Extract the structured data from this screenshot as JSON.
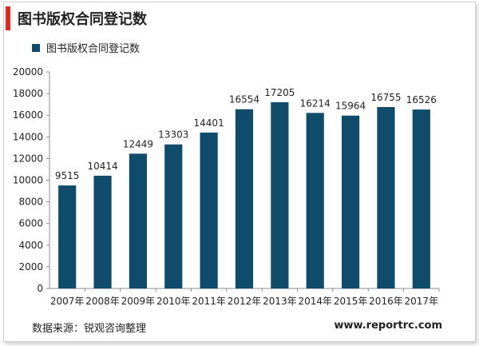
{
  "title": "图书版权合同登记数",
  "source": "数据来源：锐观咨询整理",
  "website": "www.reportrc.com",
  "colors": {
    "accent": "#e8261e",
    "bar": "#0f4c6b"
  },
  "chart_data": {
    "type": "bar",
    "categories": [
      "2007年",
      "2008年",
      "2009年",
      "2010年",
      "2011年",
      "2012年",
      "2013年",
      "2014年",
      "2015年",
      "2016年",
      "2017年"
    ],
    "series": [
      {
        "name": "图书版权合同登记数",
        "values": [
          9515,
          10414,
          12449,
          13303,
          14401,
          16554,
          17205,
          16214,
          15964,
          16755,
          16526
        ]
      }
    ],
    "data_labels": [
      "9515",
      "10414",
      "12449",
      "13303",
      "14401",
      "16554",
      "17205",
      "16214",
      "15964",
      "16755",
      "16526"
    ],
    "yticks": [
      "0",
      "2000",
      "4000",
      "6000",
      "8000",
      "10000",
      "12000",
      "14000",
      "16000",
      "18000",
      "20000"
    ],
    "ylim": [
      0,
      20000
    ],
    "legend_position": "top-left",
    "grid": false
  }
}
